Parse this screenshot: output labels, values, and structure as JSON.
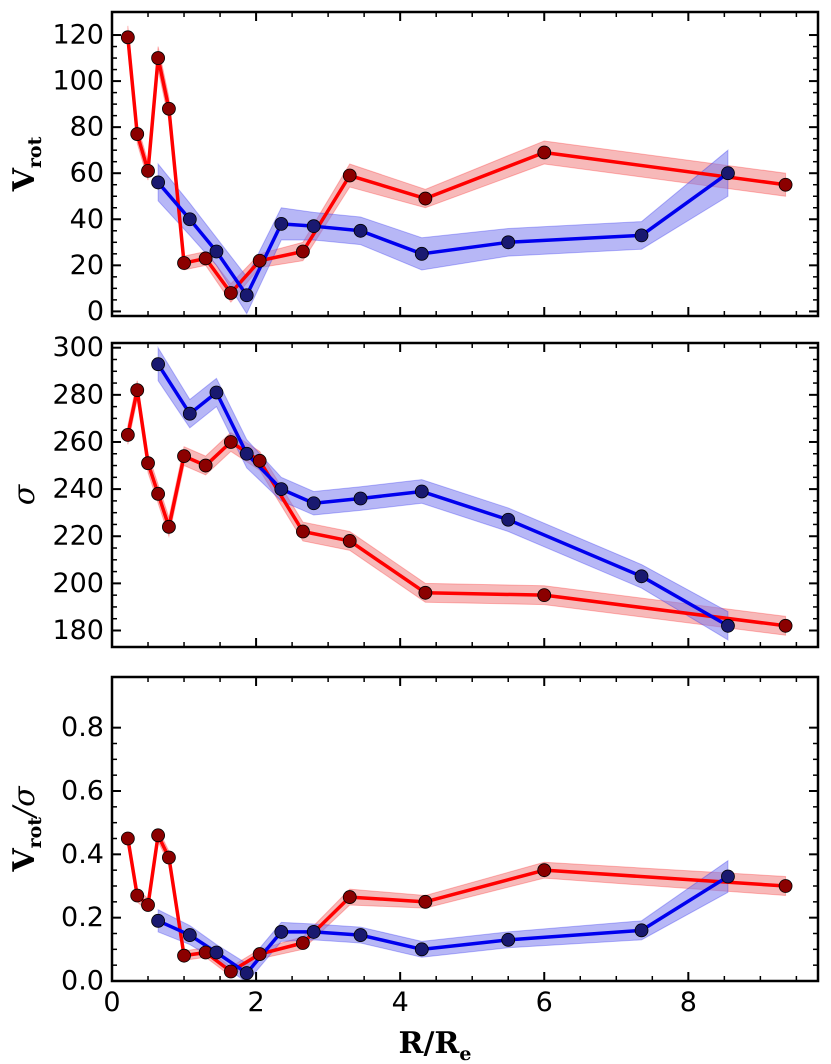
{
  "chart_data": [
    {
      "type": "line",
      "ylabel": "V",
      "ylabel_sub": "rot",
      "xlim": [
        0,
        9.8
      ],
      "ylim": [
        -2,
        130
      ],
      "yticks": [
        0,
        20,
        40,
        60,
        80,
        100,
        120
      ],
      "series": [
        {
          "name": "red",
          "color": "#ff0000",
          "marker": "#8b0000",
          "band": "#f08080",
          "x": [
            0.22,
            0.35,
            0.5,
            0.64,
            0.79,
            1.0,
            1.3,
            1.65,
            2.05,
            2.65,
            3.3,
            4.35,
            6.0,
            9.35
          ],
          "y": [
            119,
            77,
            61,
            110,
            88,
            21,
            23,
            8,
            22,
            26,
            59,
            49,
            69,
            55
          ],
          "err": [
            5,
            4,
            4,
            5,
            5,
            3,
            3,
            4,
            3,
            4,
            5,
            4,
            5,
            5
          ]
        },
        {
          "name": "blue",
          "color": "#0000ee",
          "marker": "#191970",
          "band": "#7b7bee",
          "x": [
            0.64,
            1.08,
            1.45,
            1.87,
            2.35,
            2.8,
            3.45,
            4.3,
            5.5,
            7.35,
            8.55
          ],
          "y": [
            56,
            40,
            26,
            7,
            38,
            37,
            35,
            25,
            30,
            33,
            60
          ],
          "err": [
            8,
            7,
            6,
            8,
            7,
            6,
            6,
            7,
            6,
            6,
            10
          ]
        }
      ]
    },
    {
      "type": "line",
      "ylabel": "σ",
      "xlim": [
        0,
        9.8
      ],
      "ylim": [
        173,
        302
      ],
      "yticks": [
        180,
        200,
        220,
        240,
        260,
        280,
        300
      ],
      "series": [
        {
          "name": "red",
          "color": "#ff0000",
          "marker": "#8b0000",
          "band": "#f08080",
          "x": [
            0.22,
            0.35,
            0.5,
            0.64,
            0.79,
            1.0,
            1.3,
            1.65,
            2.05,
            2.65,
            3.3,
            4.35,
            6.0,
            9.35
          ],
          "y": [
            263,
            282,
            251,
            238,
            224,
            254,
            250,
            260,
            252,
            222,
            218,
            196,
            195,
            182
          ],
          "err": [
            4,
            4,
            4,
            4,
            4,
            4,
            4,
            4,
            4,
            4,
            4,
            4,
            4,
            4
          ]
        },
        {
          "name": "blue",
          "color": "#0000ee",
          "marker": "#191970",
          "band": "#7b7bee",
          "x": [
            0.64,
            1.08,
            1.45,
            1.87,
            2.35,
            2.8,
            3.45,
            4.3,
            5.5,
            7.35,
            8.55
          ],
          "y": [
            293,
            272,
            281,
            255,
            240,
            234,
            236,
            239,
            227,
            203,
            182
          ],
          "err": [
            7,
            6,
            6,
            6,
            5,
            5,
            5,
            5,
            5,
            5,
            6
          ]
        }
      ]
    },
    {
      "type": "line",
      "ylabel": "V",
      "ylabel_sub": "rot",
      "ylabel_tail": "/σ",
      "xlabel": "R/R",
      "xlabel_sub": "e",
      "xlim": [
        0,
        9.8
      ],
      "ylim": [
        0,
        0.96
      ],
      "yticks": [
        0.0,
        0.2,
        0.4,
        0.6,
        0.8
      ],
      "xticks": [
        0,
        2,
        4,
        6,
        8
      ],
      "series": [
        {
          "name": "red",
          "color": "#ff0000",
          "marker": "#8b0000",
          "band": "#f08080",
          "x": [
            0.22,
            0.35,
            0.5,
            0.64,
            0.79,
            1.0,
            1.3,
            1.65,
            2.05,
            2.65,
            3.3,
            4.35,
            6.0,
            9.35
          ],
          "y": [
            0.45,
            0.27,
            0.24,
            0.46,
            0.39,
            0.08,
            0.09,
            0.03,
            0.085,
            0.12,
            0.265,
            0.25,
            0.35,
            0.3
          ],
          "err": [
            0.02,
            0.02,
            0.02,
            0.02,
            0.02,
            0.015,
            0.015,
            0.015,
            0.015,
            0.02,
            0.025,
            0.02,
            0.025,
            0.03
          ]
        },
        {
          "name": "blue",
          "color": "#0000ee",
          "marker": "#191970",
          "band": "#7b7bee",
          "x": [
            0.64,
            1.08,
            1.45,
            1.87,
            2.35,
            2.8,
            3.45,
            4.3,
            5.5,
            7.35,
            8.55
          ],
          "y": [
            0.19,
            0.145,
            0.09,
            0.025,
            0.155,
            0.155,
            0.145,
            0.1,
            0.13,
            0.16,
            0.33
          ],
          "err": [
            0.035,
            0.03,
            0.025,
            0.03,
            0.03,
            0.025,
            0.025,
            0.025,
            0.025,
            0.03,
            0.05
          ]
        }
      ]
    }
  ]
}
